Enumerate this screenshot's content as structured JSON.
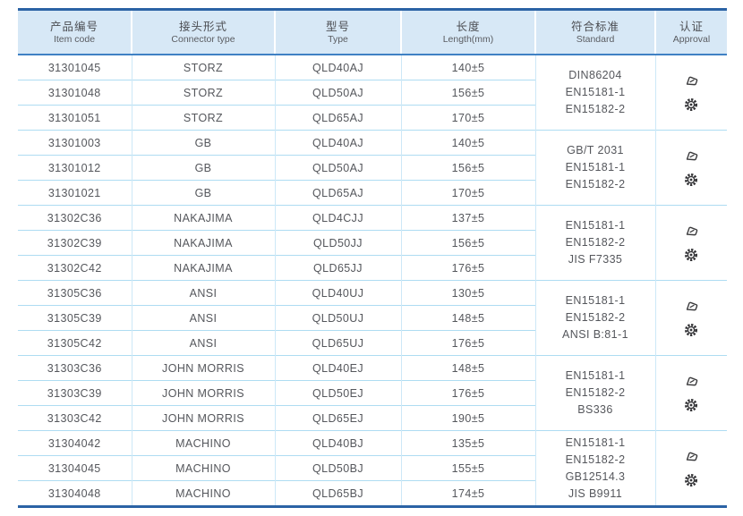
{
  "table": {
    "columns": [
      {
        "zh": "产品编号",
        "en": "Item code"
      },
      {
        "zh": "接头形式",
        "en": "Connector type"
      },
      {
        "zh": "型号",
        "en": "Type"
      },
      {
        "zh": "长度",
        "en": "Length(mm)"
      },
      {
        "zh": "符合标准",
        "en": "Standard"
      },
      {
        "zh": "认证",
        "en": "Approval"
      }
    ],
    "groups": [
      {
        "rows": [
          {
            "item_code": "31301045",
            "connector_type": "STORZ",
            "type": "QLD40AJ",
            "length": "140±5"
          },
          {
            "item_code": "31301048",
            "connector_type": "STORZ",
            "type": "QLD50AJ",
            "length": "156±5"
          },
          {
            "item_code": "31301051",
            "connector_type": "STORZ",
            "type": "QLD65AJ",
            "length": "170±5"
          }
        ],
        "standards": [
          "DIN86204",
          "EN15181-1",
          "EN15182-2"
        ],
        "approval_icons": [
          "approval-stamp-icon",
          "approval-gear-icon"
        ]
      },
      {
        "rows": [
          {
            "item_code": "31301003",
            "connector_type": "GB",
            "type": "QLD40AJ",
            "length": "140±5"
          },
          {
            "item_code": "31301012",
            "connector_type": "GB",
            "type": "QLD50AJ",
            "length": "156±5"
          },
          {
            "item_code": "31301021",
            "connector_type": "GB",
            "type": "QLD65AJ",
            "length": "170±5"
          }
        ],
        "standards": [
          "GB/T 2031",
          "EN15181-1",
          "EN15182-2"
        ],
        "approval_icons": [
          "approval-stamp-icon",
          "approval-gear-icon"
        ]
      },
      {
        "rows": [
          {
            "item_code": "31302C36",
            "connector_type": "NAKAJIMA",
            "type": "QLD4CJJ",
            "length": "137±5"
          },
          {
            "item_code": "31302C39",
            "connector_type": "NAKAJIMA",
            "type": "QLD50JJ",
            "length": "156±5"
          },
          {
            "item_code": "31302C42",
            "connector_type": "NAKAJIMA",
            "type": "QLD65JJ",
            "length": "176±5"
          }
        ],
        "standards": [
          "EN15181-1",
          "EN15182-2",
          "JIS F7335"
        ],
        "approval_icons": [
          "approval-stamp-icon",
          "approval-gear-icon"
        ]
      },
      {
        "rows": [
          {
            "item_code": "31305C36",
            "connector_type": "ANSI",
            "type": "QLD40UJ",
            "length": "130±5"
          },
          {
            "item_code": "31305C39",
            "connector_type": "ANSI",
            "type": "QLD50UJ",
            "length": "148±5"
          },
          {
            "item_code": "31305C42",
            "connector_type": "ANSI",
            "type": "QLD65UJ",
            "length": "176±5"
          }
        ],
        "standards": [
          "EN15181-1",
          "EN15182-2",
          "ANSI B:81-1"
        ],
        "approval_icons": [
          "approval-stamp-icon",
          "approval-gear-icon"
        ]
      },
      {
        "rows": [
          {
            "item_code": "31303C36",
            "connector_type": "JOHN MORRIS",
            "type": "QLD40EJ",
            "length": "148±5"
          },
          {
            "item_code": "31303C39",
            "connector_type": "JOHN MORRIS",
            "type": "QLD50EJ",
            "length": "176±5"
          },
          {
            "item_code": "31303C42",
            "connector_type": "JOHN MORRIS",
            "type": "QLD65EJ",
            "length": "190±5"
          }
        ],
        "standards": [
          "EN15181-1",
          "EN15182-2",
          "BS336"
        ],
        "approval_icons": [
          "approval-stamp-icon",
          "approval-gear-icon"
        ]
      },
      {
        "rows": [
          {
            "item_code": "31304042",
            "connector_type": "MACHINO",
            "type": "QLD40BJ",
            "length": "135±5"
          },
          {
            "item_code": "31304045",
            "connector_type": "MACHINO",
            "type": "QLD50BJ",
            "length": "155±5"
          },
          {
            "item_code": "31304048",
            "connector_type": "MACHINO",
            "type": "QLD65BJ",
            "length": "174±5"
          }
        ],
        "standards": [
          "EN15181-1",
          "EN15182-2",
          "GB12514.3",
          "JIS B9911"
        ],
        "approval_icons": [
          "approval-stamp-icon",
          "approval-gear-icon"
        ]
      }
    ],
    "colors": {
      "header_bg": "#d7e8f6",
      "outer_border": "#2b63a5",
      "header_underline": "#3f81c4",
      "row_line": "#aedcf2",
      "col_line": "#cde8f7",
      "text": "#55575c"
    }
  }
}
